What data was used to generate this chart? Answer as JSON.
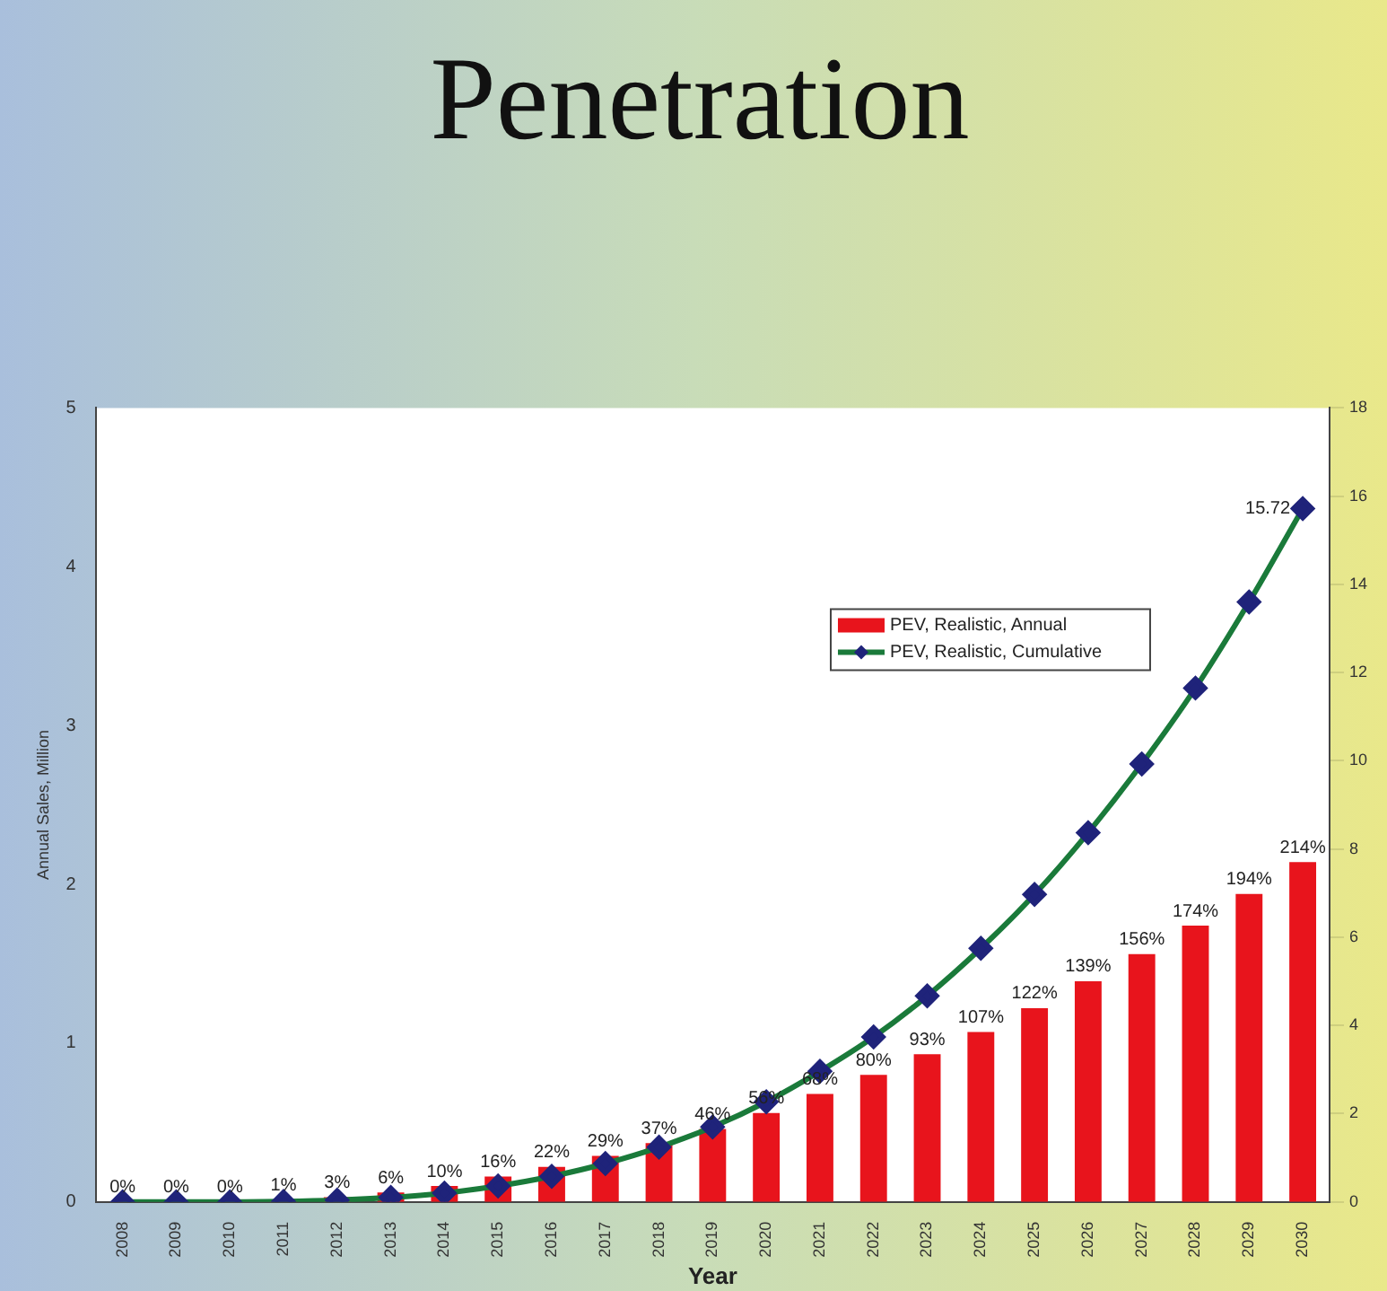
{
  "chart_data": {
    "type": "bar",
    "title": "Penetration",
    "xlabel": "Year",
    "ylabel": "Annual Sales, Million",
    "categories": [
      "2008",
      "2009",
      "2010",
      "2011",
      "2012",
      "2013",
      "2014",
      "2015",
      "2016",
      "2017",
      "2018",
      "2019",
      "2020",
      "2021",
      "2022",
      "2023",
      "2024",
      "2025",
      "2026",
      "2027",
      "2028",
      "2029",
      "2030"
    ],
    "series": [
      {
        "name": "PEV, Realistic, Annual",
        "color": "#e8141c",
        "values": [
          0,
          0,
          0,
          0.01,
          0.03,
          0.06,
          0.1,
          0.16,
          0.22,
          0.29,
          0.37,
          0.46,
          0.56,
          0.68,
          0.8,
          0.93,
          1.07,
          1.22,
          1.39,
          1.56,
          1.74,
          1.94,
          2.14
        ],
        "value_labels": [
          "0%",
          "0%",
          "0%",
          "1%",
          "3%",
          "6%",
          "10%",
          "16%",
          "22%",
          "29%",
          "37%",
          "46%",
          "56%",
          "68%",
          "80%",
          "93%",
          "107%",
          "122%",
          "139%",
          "156%",
          "174%",
          "194%",
          "214%"
        ]
      },
      {
        "name": "PEV, Realistic, Cumulative",
        "type": "line",
        "axis": "y2",
        "color": "#1a7a3a",
        "marker": "diamond",
        "values": [
          0,
          0,
          0,
          0.01,
          0.04,
          0.1,
          0.2,
          0.36,
          0.58,
          0.87,
          1.24,
          1.7,
          2.27,
          2.96,
          3.74,
          4.67,
          5.75,
          6.97,
          8.37,
          9.93,
          11.65,
          13.6,
          15.72
        ],
        "value_labels": [
          null,
          null,
          null,
          null,
          null,
          null,
          null,
          null,
          null,
          null,
          null,
          null,
          null,
          null,
          null,
          null,
          null,
          null,
          null,
          null,
          null,
          null,
          "15.72"
        ]
      }
    ],
    "ylim": [
      0,
      5
    ],
    "yticks": [
      0,
      1,
      2,
      3,
      4,
      5
    ],
    "y2lim": [
      0,
      18
    ],
    "y2ticks": [
      0,
      2,
      4,
      6,
      8,
      10,
      12,
      14,
      16,
      18
    ],
    "grid": false,
    "legend": "top right"
  }
}
